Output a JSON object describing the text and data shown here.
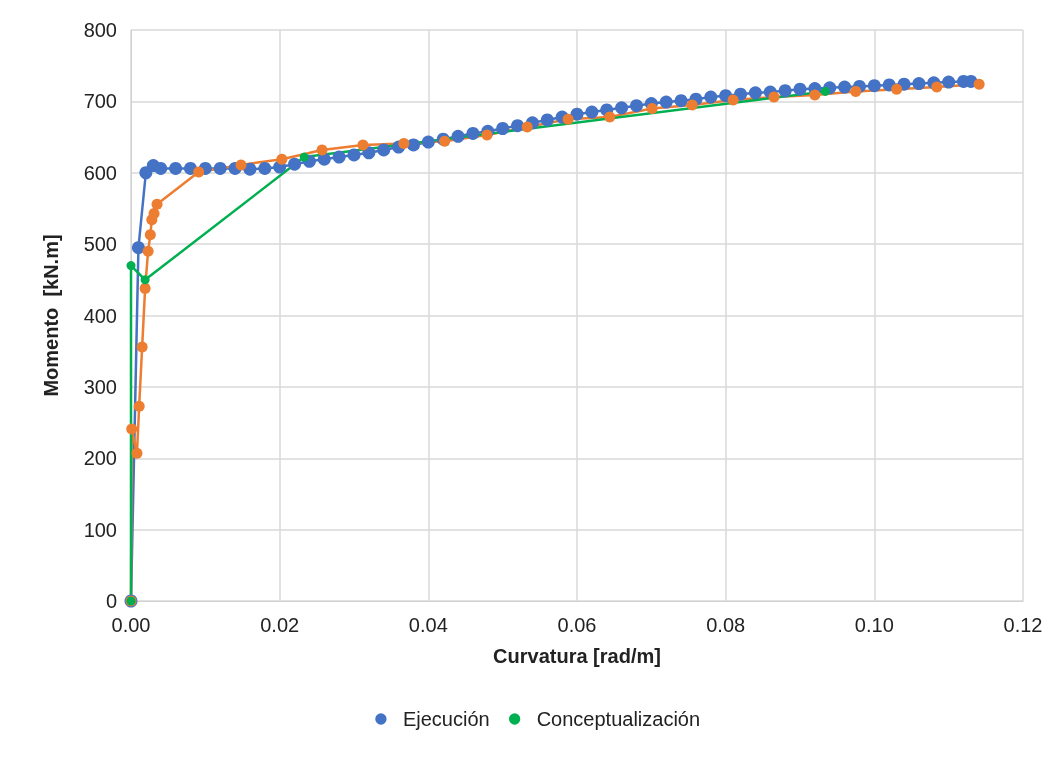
{
  "chart_data": {
    "type": "line",
    "xlabel": "Curvatura [rad/m]",
    "ylabel": "Momento  [kN.m]",
    "xlim": [
      0,
      0.12
    ],
    "ylim": [
      0,
      800
    ],
    "xticks": [
      {
        "value": 0,
        "label": "0.00"
      },
      {
        "value": 0.02,
        "label": "0.02"
      },
      {
        "value": 0.04,
        "label": "0.04"
      },
      {
        "value": 0.06,
        "label": "0.06"
      },
      {
        "value": 0.08,
        "label": "0.08"
      },
      {
        "value": 0.1,
        "label": "0.10"
      },
      {
        "value": 0.12,
        "label": "0.12"
      }
    ],
    "yticks": [
      0,
      100,
      200,
      300,
      400,
      500,
      600,
      700,
      800
    ],
    "grid": true,
    "legend": "bottom",
    "marker": "circle",
    "line_style": "solid",
    "series": [
      {
        "name": "Ejecución",
        "color": "#4472c4",
        "x": [
          0,
          0.001,
          0.002,
          0.003,
          0.004,
          0.006,
          0.008,
          0.01,
          0.012,
          0.014,
          0.016,
          0.018,
          0.02,
          0.022,
          0.024,
          0.026,
          0.028,
          0.03,
          0.032,
          0.034,
          0.036,
          0.038,
          0.04,
          0.042,
          0.044,
          0.046,
          0.048,
          0.05,
          0.052,
          0.054,
          0.056,
          0.058,
          0.06,
          0.062,
          0.064,
          0.066,
          0.068,
          0.07,
          0.072,
          0.074,
          0.076,
          0.078,
          0.08,
          0.082,
          0.084,
          0.086,
          0.088,
          0.09,
          0.092,
          0.094,
          0.096,
          0.098,
          0.1,
          0.102,
          0.104,
          0.106,
          0.108,
          0.11,
          0.112,
          0.113
        ],
        "values": [
          0,
          495,
          600,
          610,
          606,
          606,
          606,
          606,
          606,
          606,
          605,
          606,
          608,
          612,
          616,
          619,
          622,
          625,
          628,
          632,
          636,
          639,
          643,
          647,
          651,
          655,
          658,
          662,
          666,
          670,
          674,
          678,
          682,
          685,
          688,
          691,
          694,
          697,
          699,
          701,
          703,
          706,
          708,
          710,
          712,
          713,
          715,
          717,
          718,
          719,
          720,
          721,
          722,
          723,
          724,
          725,
          726,
          727,
          728,
          728
        ]
      },
      {
        "color": "#ed7d31",
        "x": [
          0,
          0.0001,
          0.0008,
          0.0011,
          0.0015,
          0.0019,
          0.0023,
          0.0026,
          0.0028,
          0.0031,
          0.0035,
          0.0091,
          0.0148,
          0.0203,
          0.0257,
          0.0312,
          0.0367,
          0.0422,
          0.0479,
          0.0533,
          0.0588,
          0.0644,
          0.0701,
          0.0755,
          0.081,
          0.0865,
          0.092,
          0.0975,
          0.103,
          0.1084,
          0.1141
        ],
        "values": [
          0,
          241,
          207,
          273,
          356,
          438,
          490,
          513,
          534,
          543,
          556,
          601,
          611,
          619,
          632,
          639,
          641,
          644,
          653,
          664,
          675,
          678,
          690,
          695,
          702,
          706,
          709,
          714,
          717,
          720,
          724
        ]
      },
      {
        "name": "Conceptualización",
        "color": "#00b050",
        "x": [
          0,
          0,
          0.0019,
          0.0233,
          0.0934
        ],
        "values": [
          0,
          470,
          450,
          622,
          714
        ]
      }
    ]
  }
}
